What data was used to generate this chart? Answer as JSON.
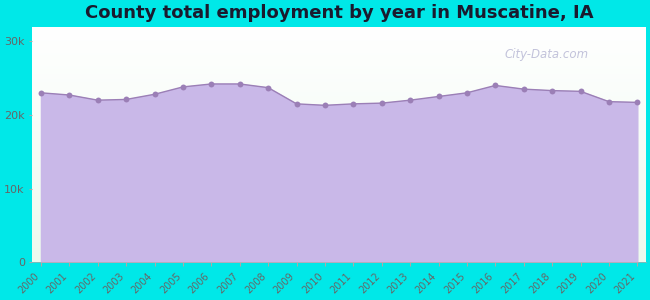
{
  "title": "County total employment by year in Muscatine, IA",
  "background_color": "#00e8e8",
  "plot_bg_color_top": "#edfaee",
  "plot_bg_color_bottom": "#ffffff",
  "years": [
    2000,
    2001,
    2002,
    2003,
    2004,
    2005,
    2006,
    2007,
    2008,
    2009,
    2010,
    2011,
    2012,
    2013,
    2014,
    2015,
    2016,
    2017,
    2018,
    2019,
    2020,
    2021
  ],
  "values": [
    23000,
    22700,
    22000,
    22100,
    22800,
    23800,
    24200,
    24200,
    23700,
    21500,
    21300,
    21500,
    21600,
    22000,
    22500,
    23000,
    24000,
    23500,
    23300,
    23200,
    21800,
    21700
  ],
  "line_color": "#9b7fb6",
  "fill_color": "#c9b8e8",
  "fill_alpha": 1.0,
  "marker_color": "#9b7fb6",
  "marker_size": 18,
  "yticks": [
    0,
    10000,
    20000,
    30000
  ],
  "ytick_labels": [
    "0",
    "10k",
    "20k",
    "30k"
  ],
  "ylim": [
    0,
    32000
  ],
  "title_fontsize": 13,
  "tick_fontsize": 8,
  "watermark": "City-Data.com"
}
